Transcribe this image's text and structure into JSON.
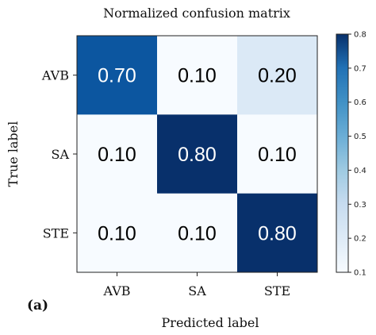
{
  "chart_data": {
    "type": "heatmap",
    "title": "Normalized confusion matrix",
    "xlabel": "Predicted label",
    "ylabel": "True label",
    "panel_label": "(a)",
    "x_categories": [
      "AVB",
      "SA",
      "STE"
    ],
    "y_categories": [
      "AVB",
      "SA",
      "STE"
    ],
    "values": [
      [
        0.7,
        0.1,
        0.2
      ],
      [
        0.1,
        0.8,
        0.1
      ],
      [
        0.1,
        0.1,
        0.8
      ]
    ],
    "value_labels": [
      [
        "0.70",
        "0.10",
        "0.20"
      ],
      [
        "0.10",
        "0.80",
        "0.10"
      ],
      [
        "0.10",
        "0.10",
        "0.80"
      ]
    ],
    "colormap": "Blues",
    "colorbar": {
      "range": [
        0.1,
        0.8
      ],
      "ticks": [
        0.1,
        0.2,
        0.3,
        0.4,
        0.5,
        0.6,
        0.7,
        0.8
      ],
      "tick_labels": [
        "0.1",
        "0.2",
        "0.3",
        "0.4",
        "0.5",
        "0.6",
        "0.7",
        "0.8"
      ]
    }
  }
}
